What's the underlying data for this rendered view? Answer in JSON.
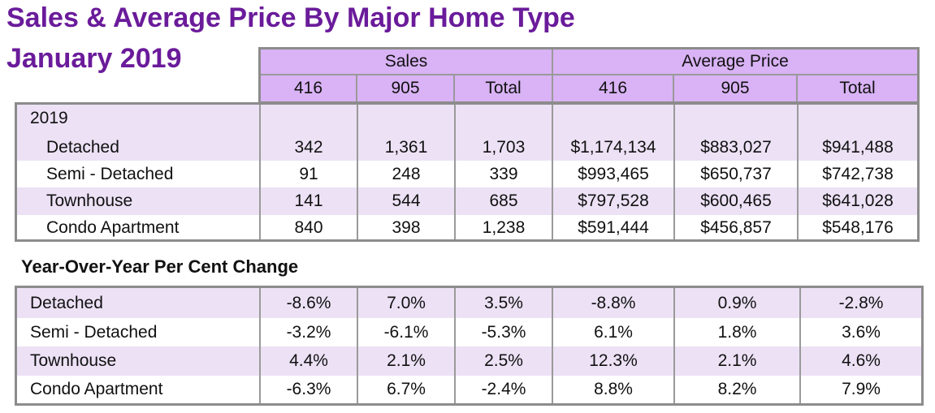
{
  "title_line1": "Sales & Average Price By Major Home Type",
  "title_line2": "January 2019",
  "header": {
    "sales_label": "Sales",
    "avg_price_label": "Average Price",
    "columns": [
      "416",
      "905",
      "Total",
      "416",
      "905",
      "Total"
    ]
  },
  "table1": {
    "year_label": "2019",
    "rows": [
      {
        "type": "Detached",
        "values": [
          "342",
          "1,361",
          "1,703",
          "$1,174,134",
          "$883,027",
          "$941,488"
        ]
      },
      {
        "type": "Semi - Detached",
        "values": [
          "91",
          "248",
          "339",
          "$993,465",
          "$650,737",
          "$742,738"
        ]
      },
      {
        "type": "Townhouse",
        "values": [
          "141",
          "544",
          "685",
          "$797,528",
          "$600,465",
          "$641,028"
        ]
      },
      {
        "type": "Condo Apartment",
        "values": [
          "840",
          "398",
          "1,238",
          "$591,444",
          "$456,857",
          "$548,176"
        ]
      }
    ]
  },
  "yoy": {
    "title": "Year-Over-Year Per Cent Change",
    "rows": [
      {
        "type": "Detached",
        "values": [
          "-8.6%",
          "7.0%",
          "3.5%",
          "-8.8%",
          "0.9%",
          "-2.8%"
        ]
      },
      {
        "type": "Semi - Detached",
        "values": [
          "-3.2%",
          "-6.1%",
          "-5.3%",
          "6.1%",
          "1.8%",
          "3.6%"
        ]
      },
      {
        "type": "Townhouse",
        "values": [
          "4.4%",
          "2.1%",
          "2.5%",
          "12.3%",
          "2.1%",
          "4.6%"
        ]
      },
      {
        "type": "Condo Apartment",
        "values": [
          "-6.3%",
          "6.7%",
          "-2.4%",
          "8.8%",
          "8.2%",
          "7.9%"
        ]
      }
    ]
  },
  "colors": {
    "title": "#6a1b9a",
    "header_fill": "#d9b3f5",
    "band_fill": "#ece1f5",
    "border": "#8c8c8c"
  }
}
